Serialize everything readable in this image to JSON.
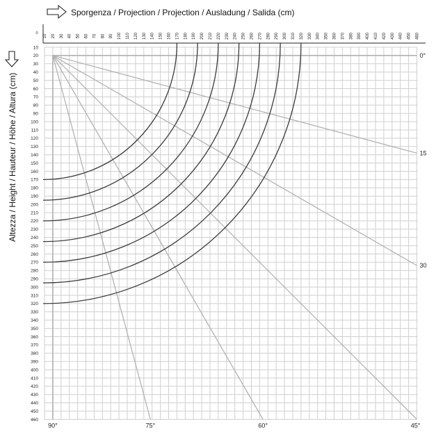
{
  "chart_data": {
    "type": "line",
    "title": "Sporgenza / Projection / Projection / Ausladung / Salida (cm)",
    "xlabel": "Sporgenza / Projection / Projection / Ausladung / Salida (cm)",
    "ylabel": "Altezza / Height / Hauteur / Höhe / Altura (cm)",
    "x_origin_label": "0",
    "x_ticks": [
      10,
      20,
      30,
      40,
      50,
      60,
      70,
      80,
      90,
      100,
      110,
      120,
      130,
      140,
      150,
      160,
      170,
      180,
      190,
      200,
      210,
      220,
      230,
      240,
      250,
      260,
      270,
      280,
      290,
      300,
      310,
      320,
      330,
      340,
      350,
      360,
      370,
      380,
      390,
      400,
      410,
      420,
      430,
      440,
      450,
      460
    ],
    "y_ticks": [
      10,
      20,
      30,
      40,
      50,
      60,
      70,
      80,
      90,
      100,
      110,
      120,
      130,
      140,
      150,
      160,
      170,
      180,
      190,
      200,
      210,
      220,
      230,
      240,
      250,
      260,
      270,
      280,
      290,
      300,
      310,
      320,
      330,
      340,
      350,
      360,
      370,
      380,
      390,
      400,
      410,
      420,
      430,
      440,
      450,
      460
    ],
    "xlim": [
      10,
      460
    ],
    "ylim": [
      10,
      460
    ],
    "grid": true,
    "pivot": {
      "x": 20,
      "y": 20
    },
    "arcs": [
      {
        "end_x": 170,
        "end_y": 170
      },
      {
        "end_x": 195,
        "end_y": 195
      },
      {
        "end_x": 220,
        "end_y": 220
      },
      {
        "end_x": 245,
        "end_y": 245
      },
      {
        "end_x": 270,
        "end_y": 270
      },
      {
        "end_x": 295,
        "end_y": 295
      },
      {
        "end_x": 320,
        "end_y": 320
      }
    ],
    "angle_lines": [
      {
        "label": "0°",
        "end_x": 460,
        "end_y": 20,
        "label_side": "right"
      },
      {
        "label": "15",
        "end_x": 460,
        "end_y": 138,
        "label_side": "right"
      },
      {
        "label": "30",
        "end_x": 460,
        "end_y": 274,
        "label_side": "right"
      },
      {
        "label": "45°",
        "end_x": 460,
        "end_y": 460,
        "label_side": "bottom"
      },
      {
        "label": "60°",
        "end_x": 274,
        "end_y": 460,
        "label_side": "bottom"
      },
      {
        "label": "75°",
        "end_x": 138,
        "end_y": 460,
        "label_side": "bottom"
      },
      {
        "label": "90°",
        "end_x": 20,
        "end_y": 460,
        "label_side": "bottom"
      }
    ],
    "colors": {
      "grid": "#cfcfcf",
      "arc": "#3a3a3a",
      "angle": "#b3b3b3",
      "text": "#222222"
    }
  }
}
